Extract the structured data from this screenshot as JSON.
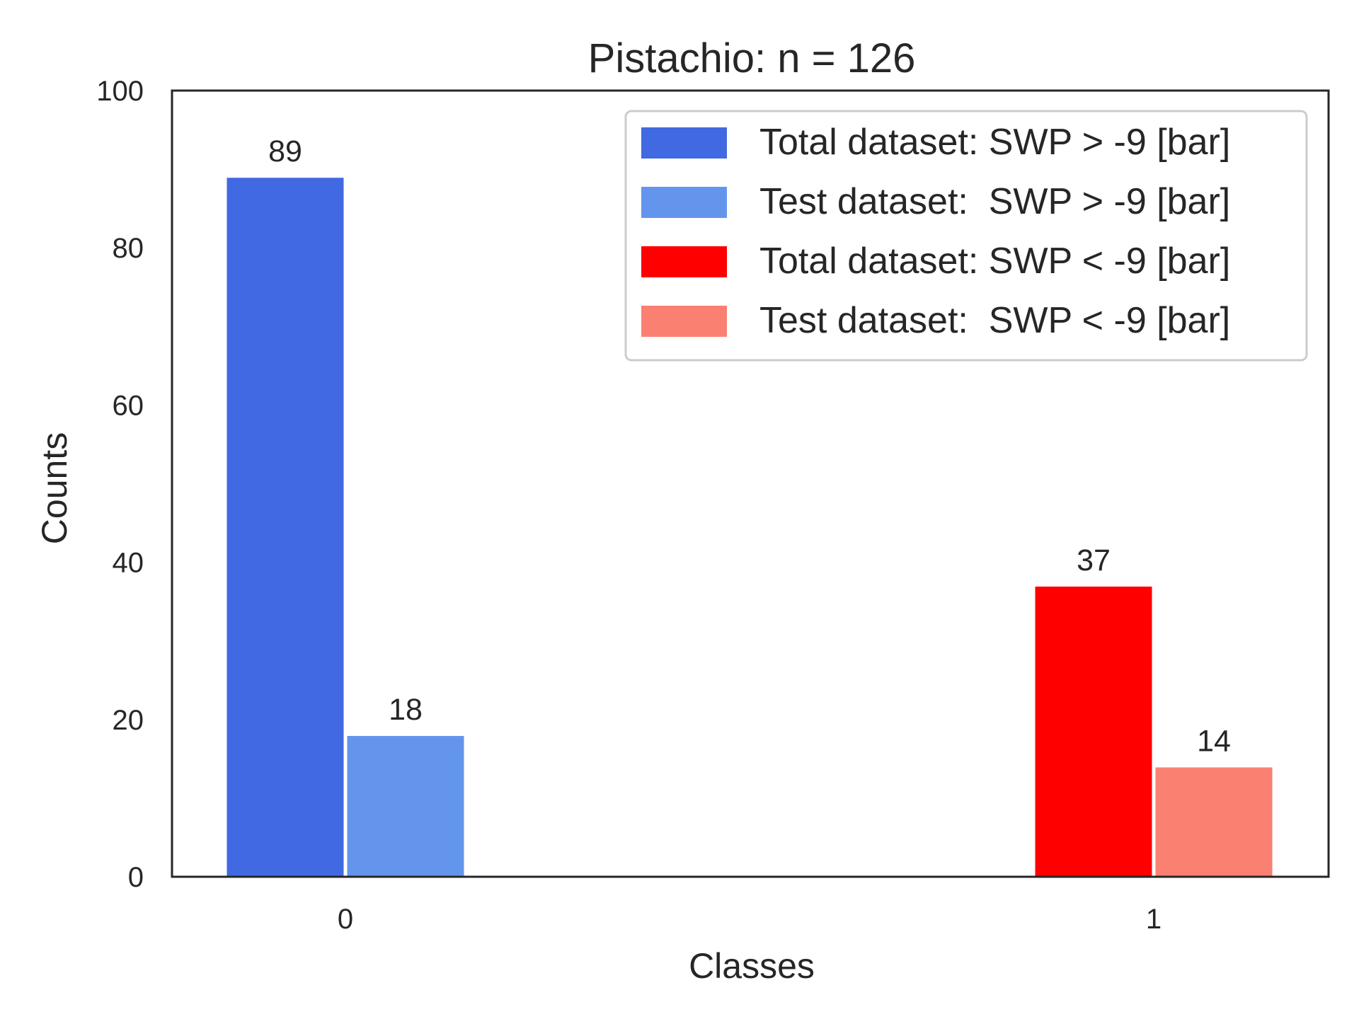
{
  "chart_data": {
    "type": "bar",
    "title": "Pistachio:  n = 126",
    "xlabel": "Classes",
    "ylabel": "Counts",
    "ylim": [
      0,
      100
    ],
    "yticks": [
      0,
      20,
      40,
      60,
      80,
      100
    ],
    "categories": [
      "0",
      "1"
    ],
    "grid": false,
    "legend_position": "top-right",
    "series": [
      {
        "name": "Total dataset: SWP > -9 [bar]",
        "color": "#4169e1",
        "values": [
          89,
          null
        ]
      },
      {
        "name": "Test dataset:  SWP > -9 [bar]",
        "color": "#6495ed",
        "values": [
          18,
          null
        ]
      },
      {
        "name": "Total dataset: SWP < -9 [bar]",
        "color": "#ff0000",
        "values": [
          null,
          37
        ]
      },
      {
        "name": "Test dataset:  SWP < -9 [bar]",
        "color": "#fa8072",
        "values": [
          null,
          14
        ]
      }
    ]
  }
}
